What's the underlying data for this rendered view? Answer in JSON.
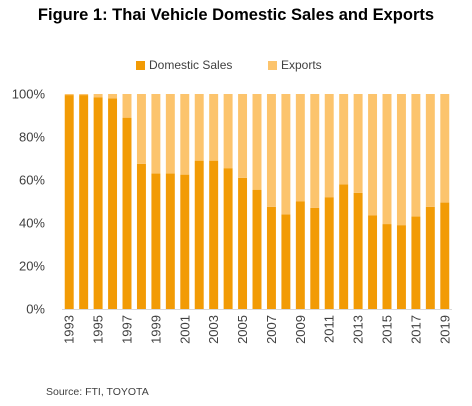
{
  "title": "Figure 1: Thai Vehicle Domestic Sales and Exports",
  "source": "Source: FTI, TOYOTA",
  "chart_data": {
    "type": "bar",
    "stacked": true,
    "percent_stacked": true,
    "title": "Figure 1: Thai Vehicle Domestic Sales and Exports",
    "xlabel": "",
    "ylabel": "",
    "ylim": [
      0,
      100
    ],
    "yticks": [
      "0%",
      "20%",
      "40%",
      "60%",
      "80%",
      "100%"
    ],
    "categories": [
      "1993",
      "1994",
      "1995",
      "1996",
      "1997",
      "1998",
      "1999",
      "2000",
      "2001",
      "2002",
      "2003",
      "2004",
      "2005",
      "2006",
      "2007",
      "2008",
      "2009",
      "2010",
      "2011",
      "2012",
      "2013",
      "2014",
      "2015",
      "2016",
      "2017",
      "2018",
      "2019"
    ],
    "xtick_labels": [
      "1993",
      "1995",
      "1997",
      "1999",
      "2001",
      "2003",
      "2005",
      "2007",
      "2009",
      "2011",
      "2013",
      "2015",
      "2017",
      "2019"
    ],
    "series": [
      {
        "name": "Domestic Sales",
        "color": "#F29B05",
        "values": [
          99.5,
          99.5,
          98.5,
          98,
          89,
          67.5,
          63,
          63,
          62.5,
          69,
          69,
          65.5,
          61,
          55.5,
          47.5,
          44,
          50,
          47,
          52,
          58,
          54,
          43.5,
          39.5,
          39,
          43,
          47.5,
          49.5
        ]
      },
      {
        "name": "Exports",
        "color": "#FCC46D",
        "values": [
          0.5,
          0.5,
          1.5,
          2,
          11,
          32.5,
          37,
          37,
          37.5,
          31,
          31,
          34.5,
          39,
          44.5,
          52.5,
          56,
          50,
          53,
          48,
          42,
          46,
          56.5,
          60.5,
          61,
          57,
          52.5,
          50.5
        ]
      }
    ],
    "legend_position": "top",
    "grid": false
  }
}
